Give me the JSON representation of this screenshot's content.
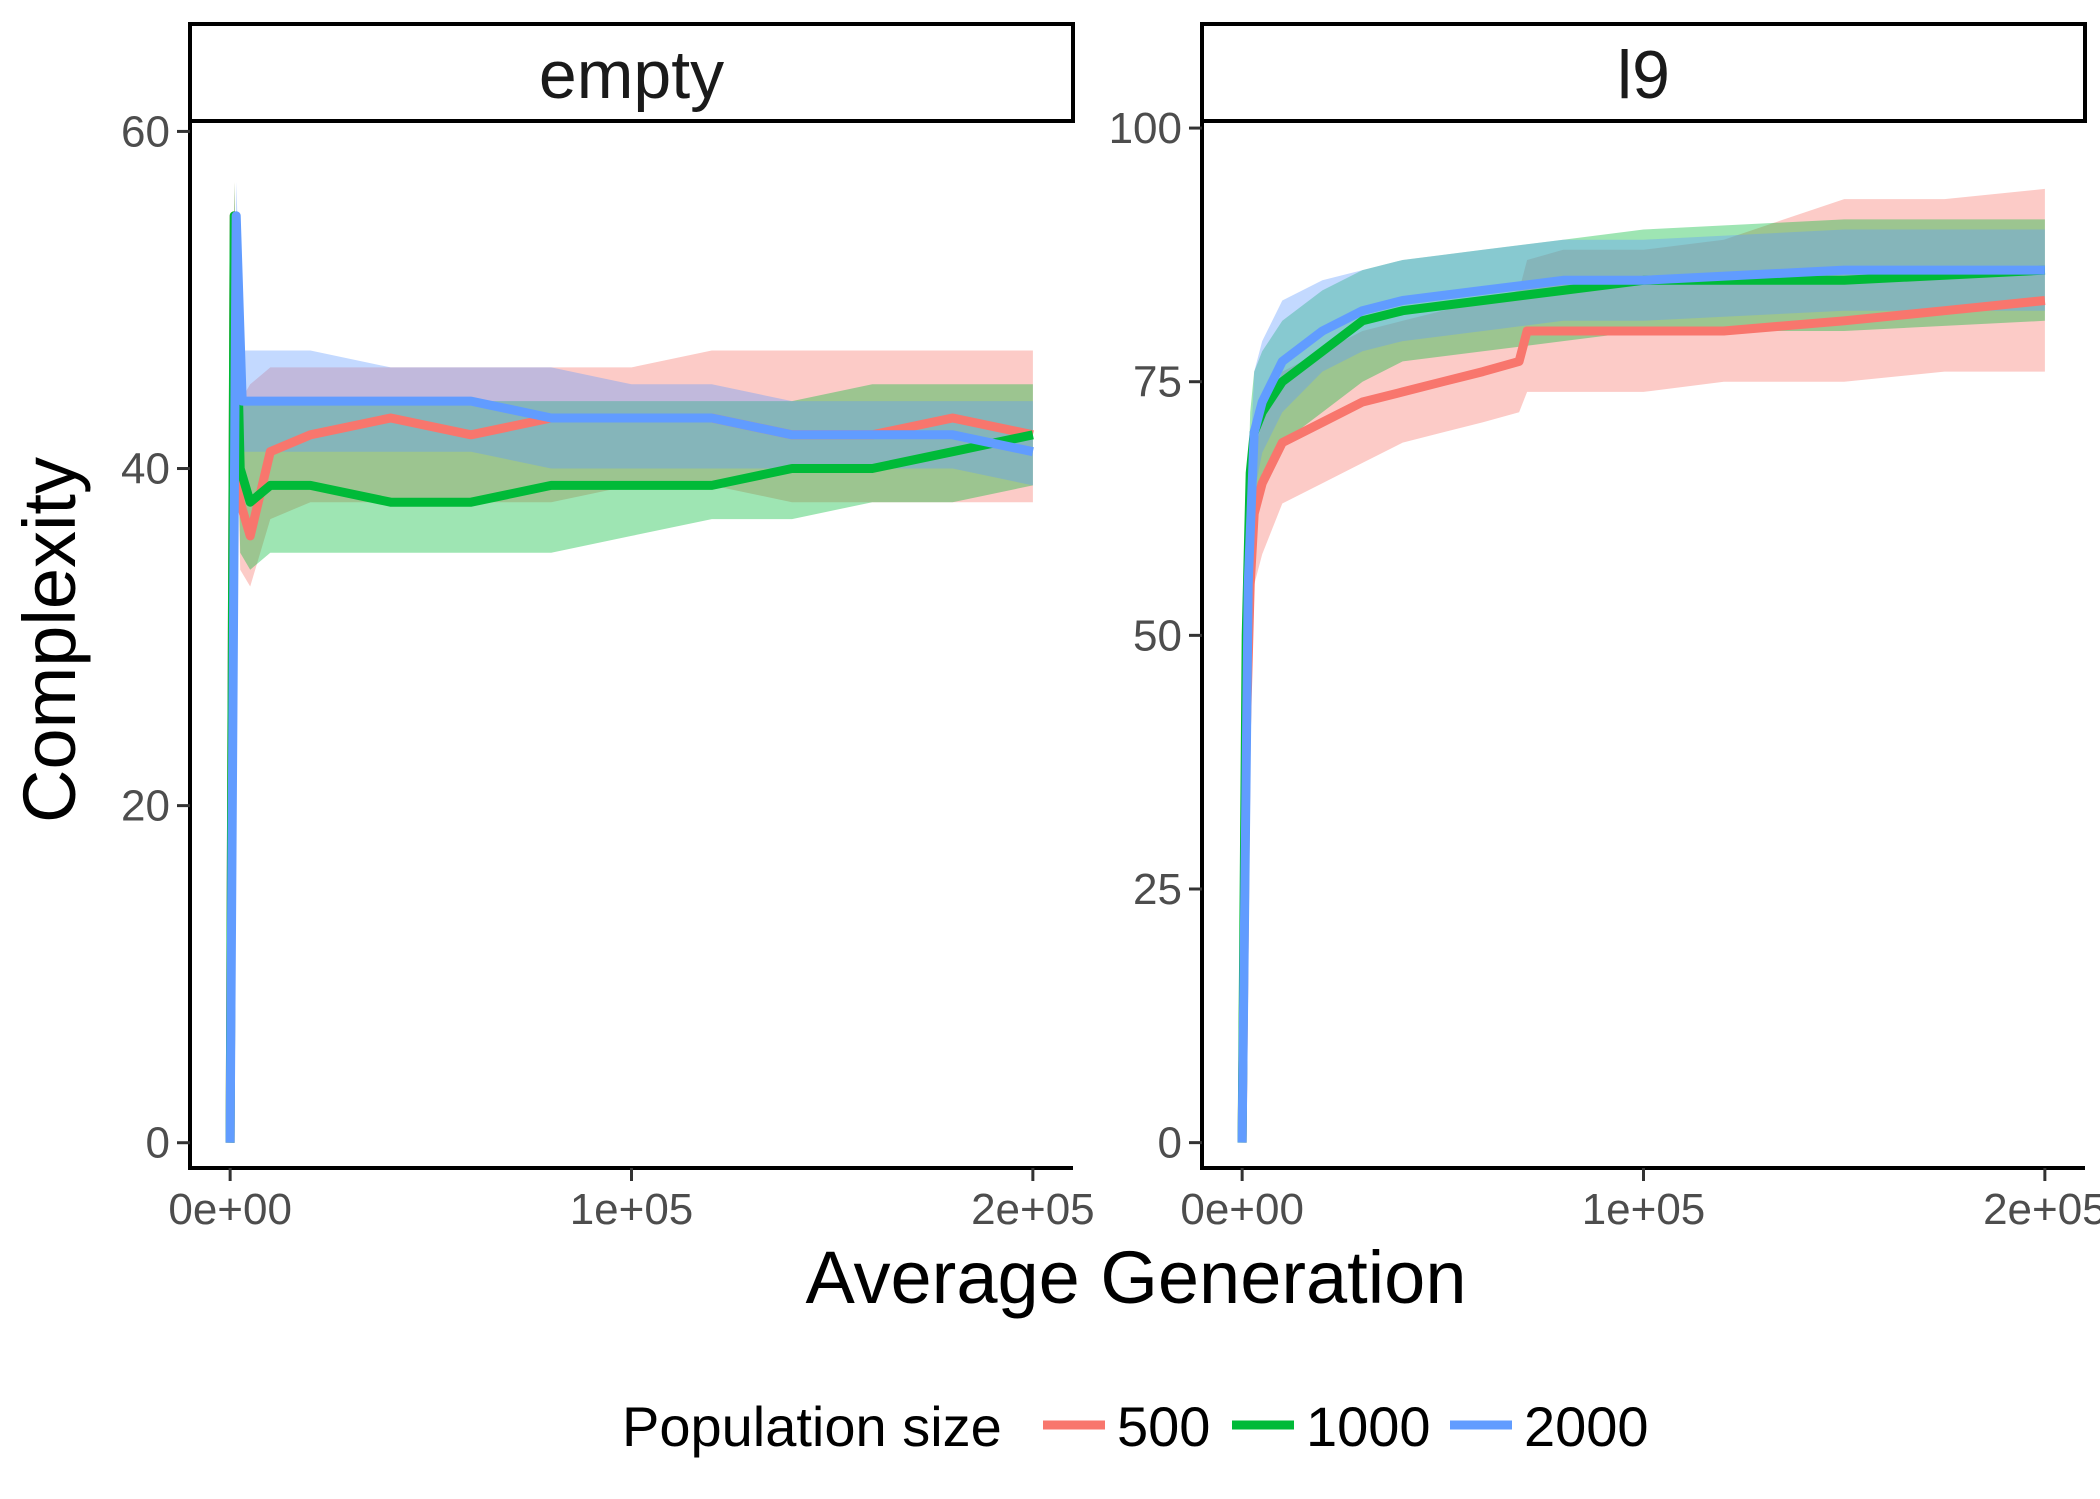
{
  "chart_data": {
    "type": "line",
    "xlabel": "Average Generation",
    "ylabel": "Complexity",
    "legend": {
      "title": "Population size",
      "placement": "bottom",
      "entries": [
        {
          "label": "500",
          "color": "#F8766D"
        },
        {
          "label": "1000",
          "color": "#00BA38"
        },
        {
          "label": "2000",
          "color": "#619CFF"
        }
      ]
    },
    "grid": false,
    "panels": [
      {
        "strip": "empty",
        "xlim": [
          -10000,
          210000
        ],
        "ylim": [
          -1.5,
          60.5
        ],
        "xticks": [
          0,
          100000,
          200000
        ],
        "xtick_labels": [
          "0e+00",
          "1e+05",
          "2e+05"
        ],
        "yticks": [
          0,
          20,
          40,
          60
        ],
        "ytick_labels": [
          "0",
          "20",
          "40",
          "60"
        ],
        "series": [
          {
            "name": "500",
            "color": "#F8766D",
            "x": [
              0,
              1000,
              2500,
              5000,
              10000,
              20000,
              40000,
              60000,
              80000,
              100000,
              120000,
              140000,
              160000,
              180000,
              200000
            ],
            "y": [
              0,
              55,
              38,
              36,
              41,
              42,
              43,
              42,
              43,
              43,
              43,
              42,
              42,
              43,
              42
            ],
            "lower": [
              0,
              52,
              34,
              33,
              37,
              38,
              38,
              38,
              38,
              39,
              39,
              38,
              38,
              38,
              38
            ],
            "upper": [
              0,
              57,
              44,
              45,
              46,
              46,
              46,
              46,
              46,
              46,
              47,
              47,
              47,
              47,
              47
            ]
          },
          {
            "name": "1000",
            "color": "#00BA38",
            "x": [
              0,
              1000,
              2500,
              5000,
              10000,
              20000,
              40000,
              60000,
              80000,
              100000,
              120000,
              140000,
              160000,
              180000,
              200000
            ],
            "y": [
              0,
              55,
              40,
              38,
              39,
              39,
              38,
              38,
              39,
              39,
              39,
              40,
              40,
              41,
              42
            ],
            "lower": [
              0,
              52,
              35,
              34,
              35,
              35,
              35,
              35,
              35,
              36,
              37,
              37,
              38,
              38,
              39
            ],
            "upper": [
              0,
              57,
              44,
              44,
              44,
              44,
              44,
              44,
              44,
              44,
              44,
              44,
              45,
              45,
              45
            ]
          },
          {
            "name": "2000",
            "color": "#619CFF",
            "x": [
              0,
              1500,
              3000,
              5000,
              10000,
              20000,
              40000,
              60000,
              80000,
              100000,
              120000,
              140000,
              160000,
              180000,
              200000
            ],
            "y": [
              0,
              55,
              44,
              44,
              44,
              44,
              44,
              44,
              43,
              43,
              43,
              42,
              42,
              42,
              41
            ],
            "lower": [
              0,
              52,
              41,
              41,
              41,
              41,
              41,
              41,
              40,
              40,
              40,
              40,
              40,
              40,
              39
            ],
            "upper": [
              0,
              57,
              47,
              47,
              47,
              47,
              46,
              46,
              46,
              45,
              45,
              44,
              44,
              44,
              44
            ]
          }
        ]
      },
      {
        "strip": "l9",
        "xlim": [
          -10000,
          210000
        ],
        "ylim": [
          -2.5,
          100.5
        ],
        "xticks": [
          0,
          100000,
          200000
        ],
        "xtick_labels": [
          "0e+00",
          "1e+05",
          "2e+05"
        ],
        "yticks": [
          0,
          25,
          50,
          75,
          100
        ],
        "ytick_labels": [
          "0",
          "25",
          "50",
          "75",
          "100"
        ],
        "series": [
          {
            "name": "500",
            "color": "#F8766D",
            "x": [
              0,
              1000,
              2000,
              3000,
              5000,
              10000,
              20000,
              30000,
              40000,
              50000,
              60000,
              69000,
              71000,
              80000,
              100000,
              120000,
              150000,
              175000,
              200000
            ],
            "y": [
              0,
              40,
              55,
              62,
              65,
              69,
              71,
              73,
              74,
              75,
              76,
              77,
              80,
              80,
              80,
              80,
              81,
              82,
              83
            ],
            "lower": [
              0,
              30,
              48,
              55,
              58,
              63,
              65,
              67,
              69,
              70,
              71,
              72,
              74,
              74,
              74,
              75,
              75,
              76,
              76
            ],
            "upper": [
              0,
              50,
              62,
              68,
              71,
              76,
              78,
              80,
              81,
              82,
              83,
              84,
              87,
              88,
              88,
              89,
              93,
              93,
              94
            ]
          },
          {
            "name": "1000",
            "color": "#00BA38",
            "x": [
              0,
              1000,
              2000,
              3000,
              5000,
              10000,
              20000,
              30000,
              40000,
              60000,
              80000,
              100000,
              150000,
              200000
            ],
            "y": [
              0,
              50,
              66,
              70,
              72,
              75,
              78,
              81,
              82,
              83,
              84,
              85,
              85,
              86
            ],
            "lower": [
              0,
              40,
              58,
              63,
              66,
              69,
              72,
              75,
              77,
              78,
              79,
              80,
              80,
              81
            ],
            "upper": [
              0,
              58,
              72,
              76,
              78,
              81,
              84,
              86,
              87,
              88,
              89,
              90,
              91,
              91
            ]
          },
          {
            "name": "2000",
            "color": "#619CFF",
            "x": [
              0,
              1500,
              3000,
              5000,
              10000,
              20000,
              30000,
              40000,
              60000,
              80000,
              100000,
              150000,
              200000
            ],
            "y": [
              0,
              55,
              70,
              73,
              77,
              80,
              82,
              83,
              84,
              85,
              85,
              86,
              86
            ],
            "lower": [
              0,
              45,
              64,
              68,
              72,
              76,
              78,
              79,
              80,
              81,
              81,
              82,
              82
            ],
            "upper": [
              0,
              62,
              76,
              79,
              83,
              85,
              86,
              87,
              88,
              89,
              89,
              90,
              90
            ]
          }
        ]
      }
    ]
  }
}
